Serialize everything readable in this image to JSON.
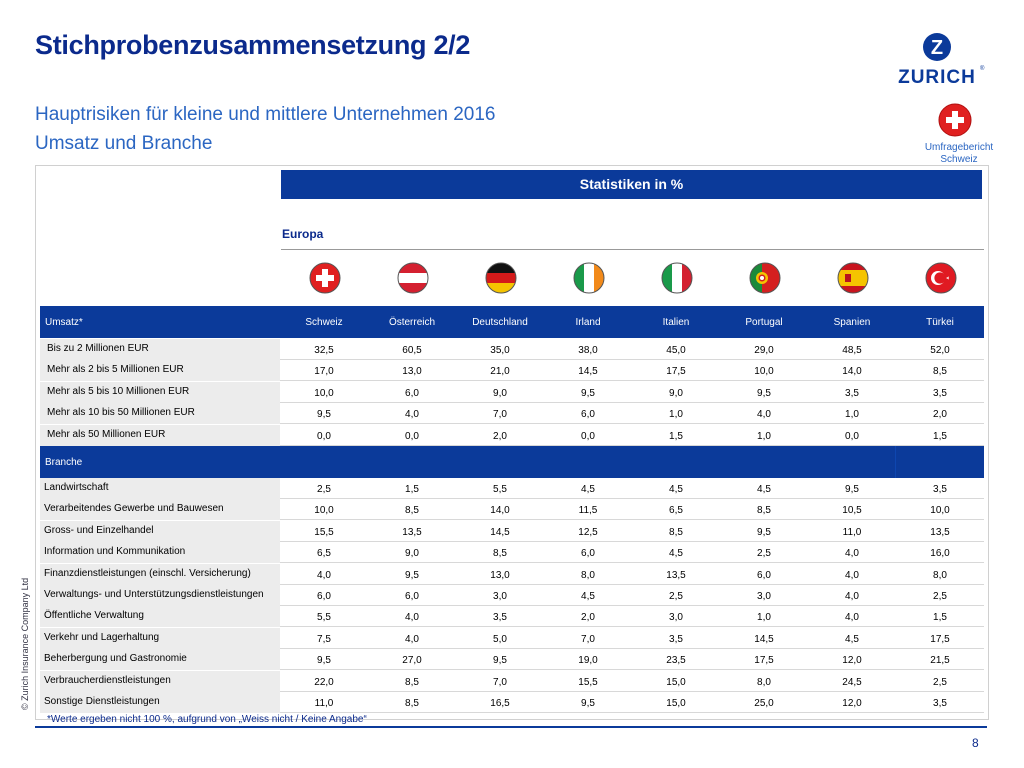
{
  "title": "Stichprobenzusammensetzung 2/2",
  "subtitle1": "Hauptrisiken für kleine und mittlere Unternehmen 2016",
  "subtitle2": "Umsatz und Branche",
  "logo_text": "ZURICH",
  "logo_letter": "Z",
  "badge_label_line1": "Umfragebericht",
  "badge_label_line2": "Schweiz",
  "copyright": "© Zurich Insurance Company Ltd",
  "stat_header": "Statistiken in %",
  "region": "Europa",
  "countries": [
    "Schweiz",
    "Österreich",
    "Deutschland",
    "Irland",
    "Italien",
    "Portugal",
    "Spanien",
    "Türkei"
  ],
  "flag_icons": [
    "switzerland-flag-icon",
    "austria-flag-icon",
    "germany-flag-icon",
    "ireland-flag-icon",
    "italy-flag-icon",
    "portugal-flag-icon",
    "spain-flag-icon",
    "turkey-flag-icon"
  ],
  "umsatz_header": "Umsatz*",
  "umsatz_rows": [
    {
      "label": "Bis zu 2 Millionen EUR",
      "values": [
        "32,5",
        "60,5",
        "35,0",
        "38,0",
        "45,0",
        "29,0",
        "48,5",
        "52,0"
      ]
    },
    {
      "label": "Mehr als 2 bis 5 Millionen EUR",
      "values": [
        "17,0",
        "13,0",
        "21,0",
        "14,5",
        "17,5",
        "10,0",
        "14,0",
        "8,5"
      ]
    },
    {
      "label": "Mehr als 5 bis 10 Millionen EUR",
      "values": [
        "10,0",
        "6,0",
        "9,0",
        "9,5",
        "9,0",
        "9,5",
        "3,5",
        "3,5"
      ]
    },
    {
      "label": "Mehr als 10 bis 50 Millionen EUR",
      "values": [
        "9,5",
        "4,0",
        "7,0",
        "6,0",
        "1,0",
        "4,0",
        "1,0",
        "2,0"
      ]
    },
    {
      "label": "Mehr als 50 Millionen EUR",
      "values": [
        "0,0",
        "0,0",
        "2,0",
        "0,0",
        "1,5",
        "1,0",
        "0,0",
        "1,5"
      ]
    }
  ],
  "branche_header": "Branche",
  "branche_rows": [
    {
      "label": "Landwirtschaft",
      "values": [
        "2,5",
        "1,5",
        "5,5",
        "4,5",
        "4,5",
        "4,5",
        "9,5",
        "3,5"
      ]
    },
    {
      "label": "Verarbeitendes Gewerbe und Bauwesen",
      "values": [
        "10,0",
        "8,5",
        "14,0",
        "11,5",
        "6,5",
        "8,5",
        "10,5",
        "10,0"
      ]
    },
    {
      "label": "Gross- und Einzelhandel",
      "values": [
        "15,5",
        "13,5",
        "14,5",
        "12,5",
        "8,5",
        "9,5",
        "11,0",
        "13,5"
      ]
    },
    {
      "label": "Information und Kommunikation",
      "values": [
        "6,5",
        "9,0",
        "8,5",
        "6,0",
        "4,5",
        "2,5",
        "4,0",
        "16,0"
      ]
    },
    {
      "label": "Finanzdienstleistungen (einschl. Versicherung)",
      "values": [
        "4,0",
        "9,5",
        "13,0",
        "8,0",
        "13,5",
        "6,0",
        "4,0",
        "8,0"
      ]
    },
    {
      "label": "Verwaltungs- und Unterstützungsdienstleistungen",
      "values": [
        "6,0",
        "6,0",
        "3,0",
        "4,5",
        "2,5",
        "3,0",
        "4,0",
        "2,5"
      ]
    },
    {
      "label": "Öffentliche Verwaltung",
      "values": [
        "5,5",
        "4,0",
        "3,5",
        "2,0",
        "3,0",
        "1,0",
        "4,0",
        "1,5"
      ]
    },
    {
      "label": "Verkehr und Lagerhaltung",
      "values": [
        "7,5",
        "4,0",
        "5,0",
        "7,0",
        "3,5",
        "14,5",
        "4,5",
        "17,5"
      ]
    },
    {
      "label": "Beherbergung und Gastronomie",
      "values": [
        "9,5",
        "27,0",
        "9,5",
        "19,0",
        "23,5",
        "17,5",
        "12,0",
        "21,5"
      ]
    },
    {
      "label": "Verbraucherdienstleistungen",
      "values": [
        "22,0",
        "8,5",
        "7,0",
        "15,5",
        "15,0",
        "8,0",
        "24,5",
        "2,5"
      ]
    },
    {
      "label": "Sonstige Dienstleistungen",
      "values": [
        "11,0",
        "8,5",
        "16,5",
        "9,5",
        "15,0",
        "25,0",
        "12,0",
        "3,5"
      ]
    }
  ],
  "footnote": "*Werte ergeben nicht 100 %, aufgrund von „Weiss nicht / Keine Angabe“",
  "page_number": "8",
  "colors": {
    "navy": "#0b3a9a",
    "title": "#0b2a8c",
    "subtitle": "#2b66c2",
    "label_bg": "#ececec"
  }
}
